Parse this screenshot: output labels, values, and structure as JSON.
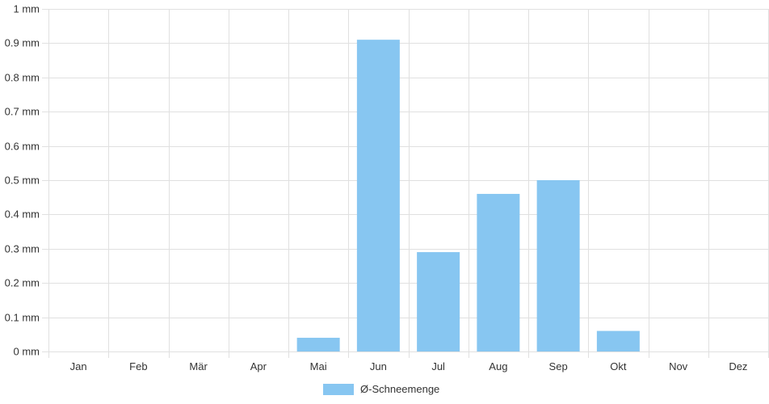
{
  "chart_data": {
    "type": "bar",
    "categories": [
      "Jan",
      "Feb",
      "Mär",
      "Apr",
      "Mai",
      "Jun",
      "Jul",
      "Aug",
      "Sep",
      "Okt",
      "Nov",
      "Dez"
    ],
    "series": [
      {
        "name": "Ø-Schneemenge",
        "values": [
          0,
          0,
          0,
          0,
          0.04,
          0.91,
          0.29,
          0.46,
          0.5,
          0.06,
          0,
          0
        ],
        "color": "#87c6f1"
      }
    ],
    "y_unit": "mm",
    "y_ticks": [
      "0 mm",
      "0.1 mm",
      "0.2 mm",
      "0.3 mm",
      "0.4 mm",
      "0.5 mm",
      "0.6 mm",
      "0.7 mm",
      "0.8 mm",
      "0.9 mm",
      "1 mm"
    ],
    "ylim": [
      0,
      1
    ],
    "grid": true,
    "legend_position": "bottom",
    "gridline_color": "#e0e0e0"
  },
  "legend": {
    "label": "Ø-Schneemenge",
    "color": "#87c6f1"
  }
}
